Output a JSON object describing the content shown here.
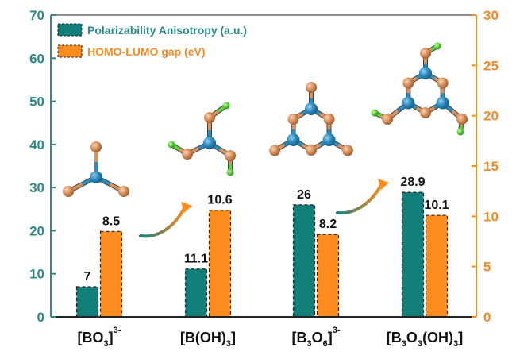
{
  "chart_data": {
    "type": "bar",
    "title": "",
    "xlabel": "",
    "categories": [
      {
        "base": "[BO",
        "sub": "3",
        "tail": "]",
        "sup": "3-"
      },
      {
        "base": "[B(OH)",
        "sub": "3",
        "tail": "]",
        "sup": ""
      },
      {
        "base": "[B",
        "sub": "3",
        "mid": "O",
        "sub2": "6",
        "tail": "]",
        "sup": "3-"
      },
      {
        "base": "[B",
        "sub": "3",
        "mid": "O",
        "sub2": "3",
        "mid2": "(OH)",
        "sub3": "3",
        "tail": "]",
        "sup": ""
      }
    ],
    "series": [
      {
        "name": "Polarizability Anisotropy (a.u.)",
        "axis": "left",
        "color": "#127f7a",
        "values": [
          7,
          11.1,
          26,
          28.9
        ],
        "labels": [
          "7",
          "11.1",
          "26",
          "28.9"
        ]
      },
      {
        "name": "HOMO-LUMO gap (eV)",
        "axis": "right",
        "color": "#fb8c1d",
        "values": [
          8.5,
          10.6,
          8.2,
          10.1
        ],
        "labels": [
          "8.5",
          "10.6",
          "8.2",
          "10.1"
        ]
      }
    ],
    "y_left": {
      "range": [
        0,
        70
      ],
      "ticks": [
        "0",
        "10",
        "20",
        "30",
        "40",
        "50",
        "60",
        "70"
      ],
      "color": "#2a8a86"
    },
    "y_right": {
      "range": [
        0,
        30
      ],
      "ticks": [
        "0",
        "5",
        "10",
        "15",
        "20",
        "25",
        "30"
      ],
      "color": "#f28c28"
    },
    "legend": {
      "placement": "top-left"
    },
    "grid": false,
    "annotations": [
      {
        "type": "curved-arrow",
        "from_category": 0,
        "to_category": 1,
        "gradient": [
          "#127f7a",
          "#fb8c1d"
        ]
      },
      {
        "type": "curved-arrow",
        "from_category": 2,
        "to_category": 3,
        "gradient": [
          "#127f7a",
          "#fb8c1d"
        ]
      },
      {
        "type": "molecule-illustration",
        "category": 0,
        "name": "BO3 trigonal planar"
      },
      {
        "type": "molecule-illustration",
        "category": 1,
        "name": "B(OH)3"
      },
      {
        "type": "molecule-illustration",
        "category": 2,
        "name": "B3O6 ring"
      },
      {
        "type": "molecule-illustration",
        "category": 3,
        "name": "B3O3(OH)3 ring"
      }
    ]
  },
  "atom_colors": {
    "boron": "#2e8bbd",
    "oxygen": "#d9915e",
    "hydrogen": "#5ed43c"
  }
}
